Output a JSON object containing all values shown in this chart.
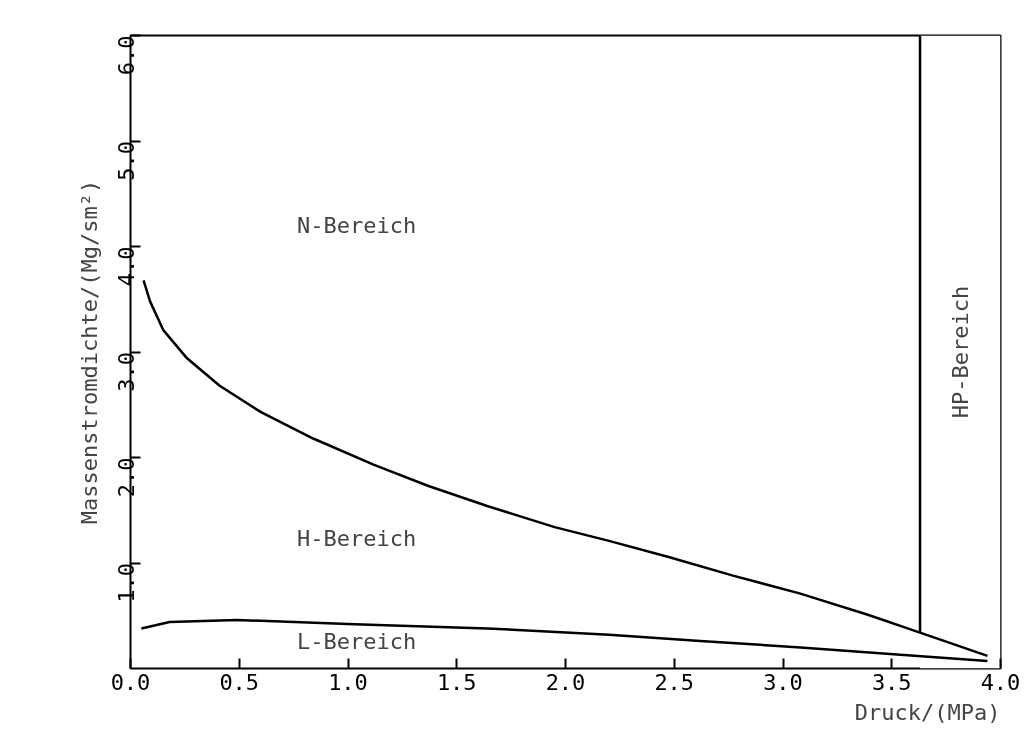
{
  "chart_data": {
    "type": "line",
    "xlabel": "Druck/(MPa)",
    "ylabel": "Massenstromdichte/(Mg/sm²)",
    "xlim": [
      0,
      4.0
    ],
    "ylim": [
      0,
      6.0
    ],
    "xticks": [
      {
        "value": 0,
        "label": "0.0"
      },
      {
        "value": 0.5,
        "label": "0.5"
      },
      {
        "value": 1.0,
        "label": "1.0"
      },
      {
        "value": 1.5,
        "label": "1.5"
      },
      {
        "value": 2.0,
        "label": "2.0"
      },
      {
        "value": 2.5,
        "label": "2.5"
      },
      {
        "value": 3.0,
        "label": "3.0"
      },
      {
        "value": 3.5,
        "label": "3.5"
      },
      {
        "value": 4.0,
        "label": "4.0"
      }
    ],
    "yticks": [
      {
        "value": 1.0,
        "label": "1.0"
      },
      {
        "value": 2.0,
        "label": "2.0"
      },
      {
        "value": 3.0,
        "label": "3.0"
      },
      {
        "value": 4.0,
        "label": "4.0"
      },
      {
        "value": 5.0,
        "label": "5.0"
      },
      {
        "value": 6.0,
        "label": "6.0"
      }
    ],
    "grid": false,
    "marker": "none",
    "line_style": "solid",
    "series": [
      {
        "color": "#000000",
        "x": [
          0.06,
          0.09,
          0.15,
          0.26,
          0.41,
          0.6,
          0.84,
          1.12,
          1.37,
          1.64,
          1.95,
          2.2,
          2.47,
          2.77,
          3.08,
          3.39,
          3.63,
          3.94
        ],
        "values": [
          3.68,
          3.48,
          3.21,
          2.94,
          2.68,
          2.43,
          2.18,
          1.93,
          1.73,
          1.54,
          1.34,
          1.21,
          1.06,
          0.88,
          0.71,
          0.51,
          0.34,
          0.12
        ]
      },
      {
        "color": "#000000",
        "x": [
          0.05,
          0.18,
          0.49,
          1.03,
          1.64,
          2.2,
          2.62,
          3.08,
          3.54,
          3.94
        ],
        "values": [
          0.38,
          0.44,
          0.46,
          0.42,
          0.38,
          0.32,
          0.26,
          0.2,
          0.13,
          0.07
        ]
      },
      {
        "color": "#000000",
        "x": [
          3.63,
          3.63
        ],
        "values": [
          0.34,
          6.0
        ]
      }
    ],
    "bands": [
      {
        "axis": "x",
        "from": 3.63,
        "to": 4.0,
        "label": "HP-Bereich",
        "color": "#ffffff"
      }
    ],
    "annotations": [
      "N-Bereich",
      "H-Bereich",
      "L-Bereich"
    ]
  }
}
